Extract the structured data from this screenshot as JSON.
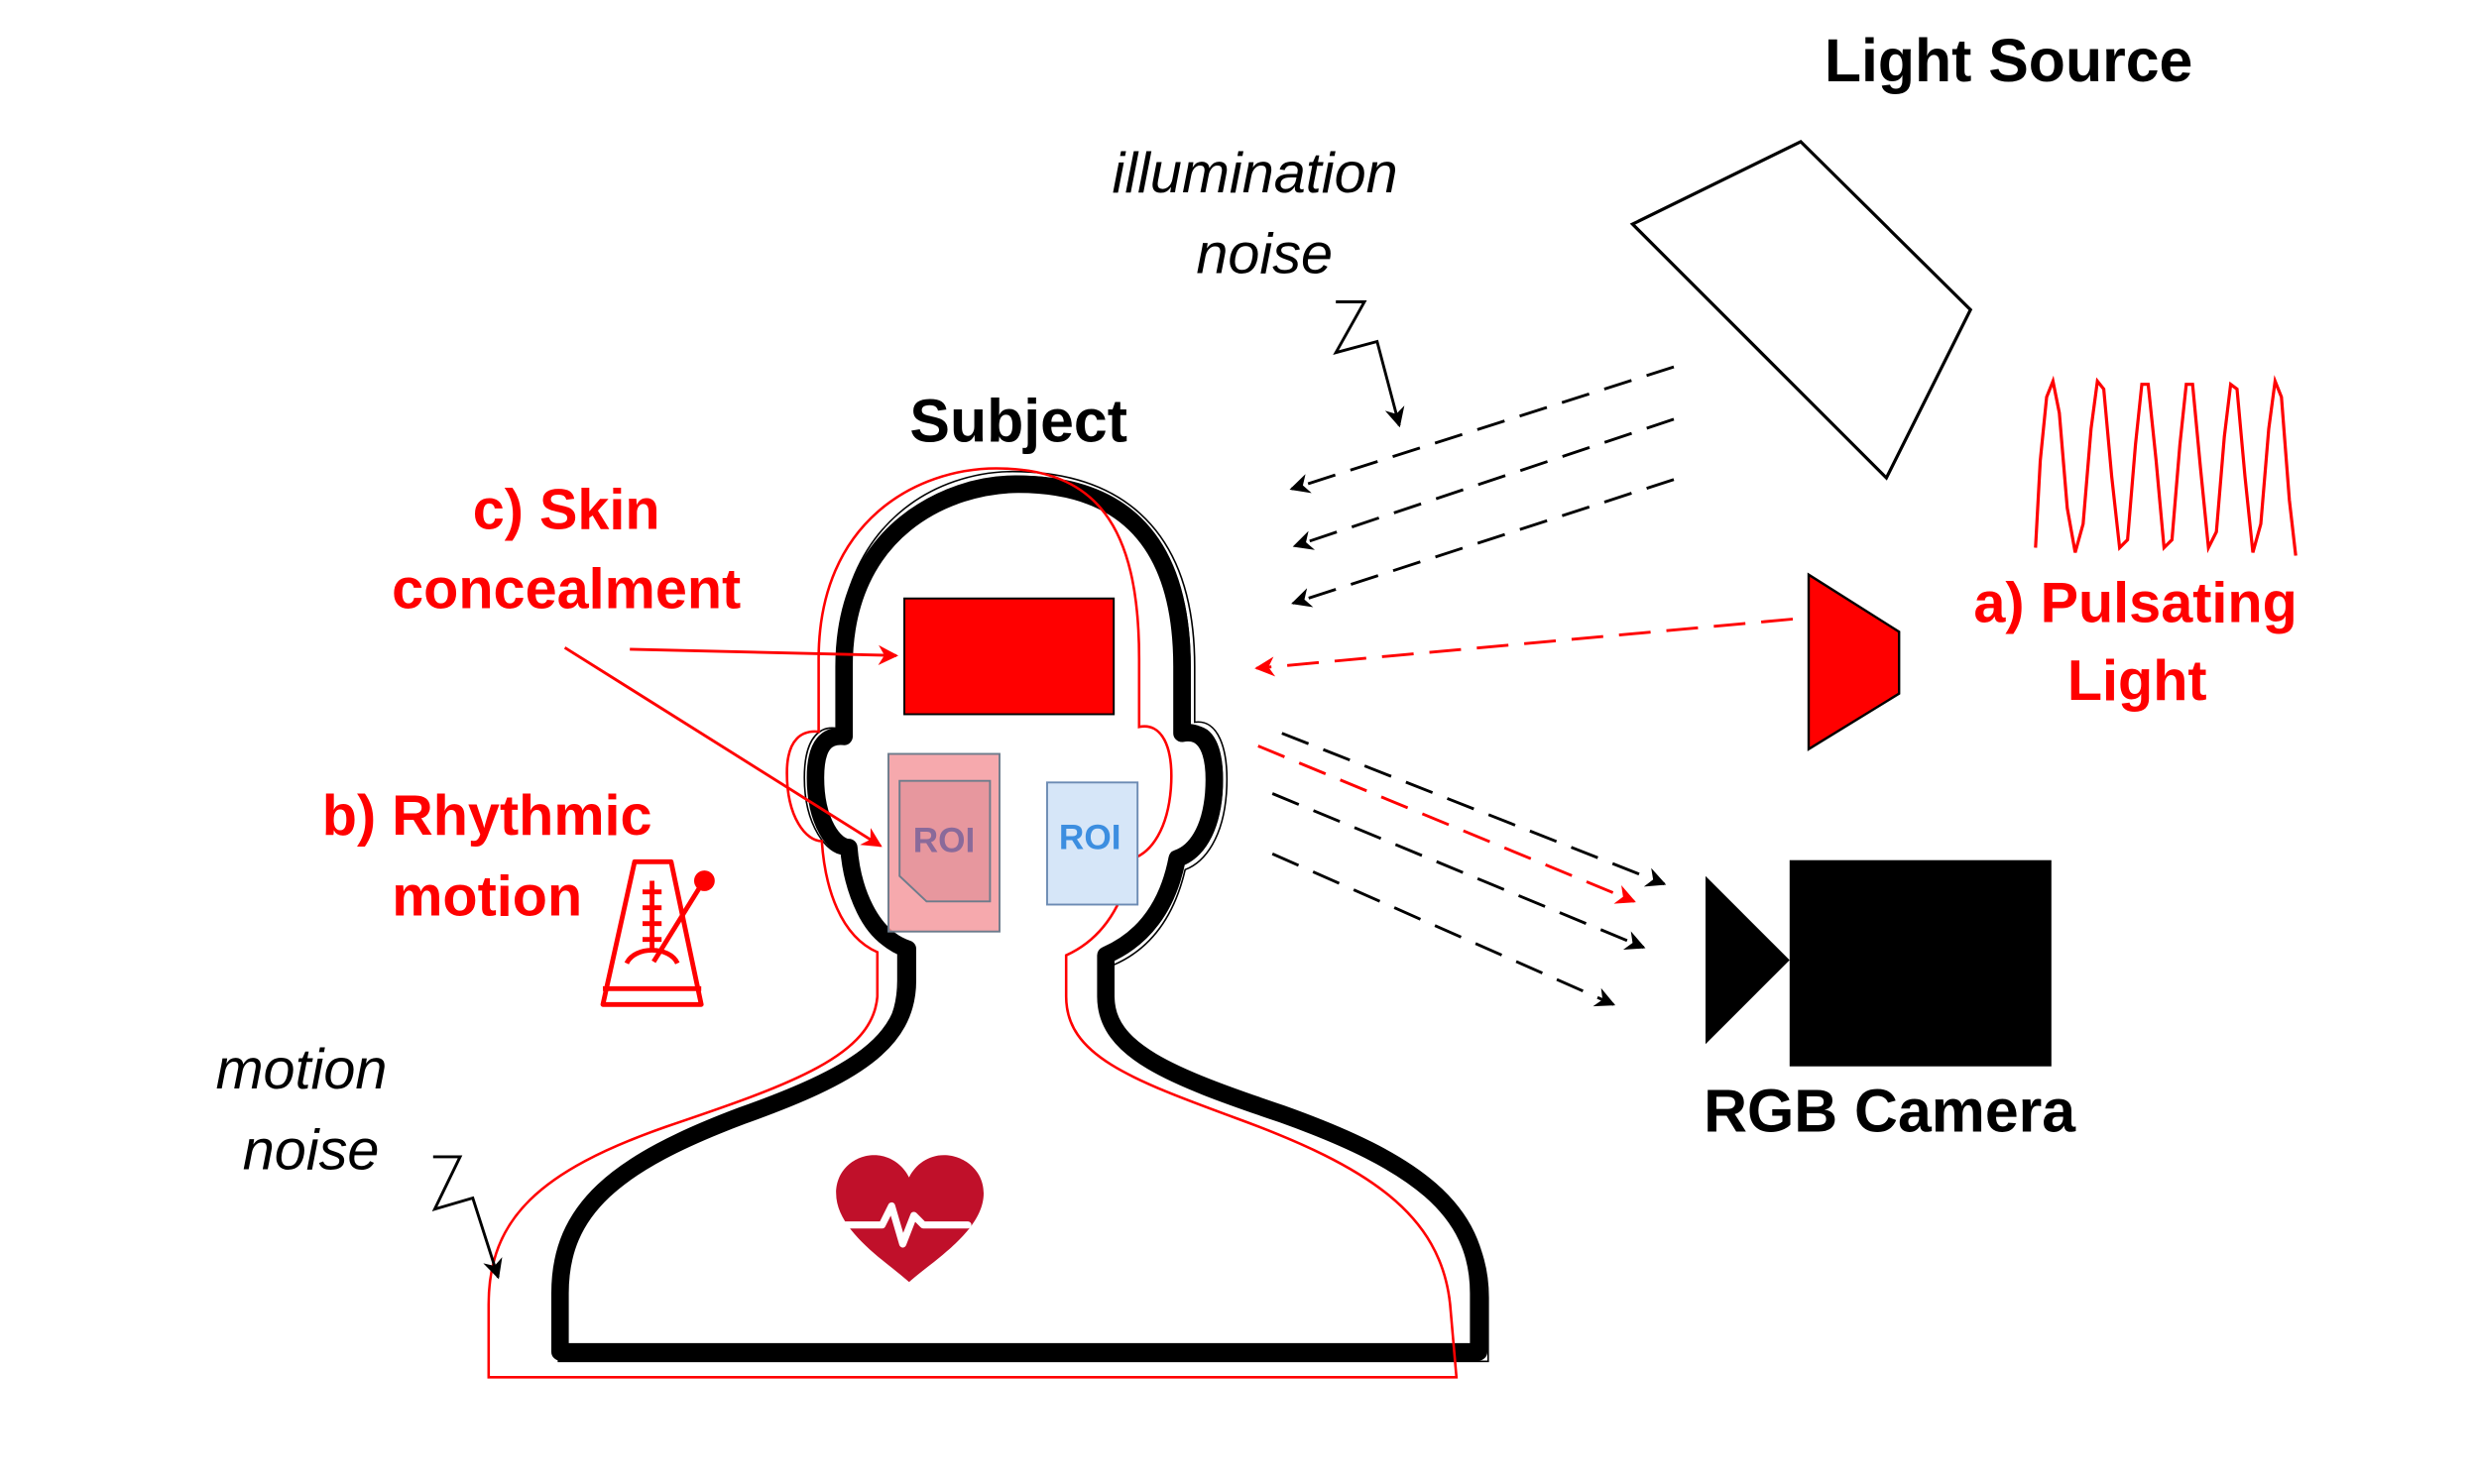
{
  "labels": {
    "light_source": "Light Source",
    "illumination_noise_line1": "illumination",
    "illumination_noise_line2": "noise",
    "subject": "Subject",
    "skin_concealment_line1": "c) Skin",
    "skin_concealment_line2": "concealment",
    "rhythmic_motion_line1": "b) Rhythmic",
    "rhythmic_motion_line2": "motion",
    "motion_noise_line1": "motion",
    "motion_noise_line2": "noise",
    "pulsating_light_line1": "a) Pulsating",
    "pulsating_light_line2": "Light",
    "rgb_camera": "RGB Camera",
    "roi_left": "ROI",
    "roi_right": "ROI"
  },
  "colors": {
    "attack_red": "#ff0000",
    "ink": "#000000",
    "heart_red": "#c0102a",
    "roi_left_fill": "#f59a9f",
    "roi_right_fill": "#d6e6f8",
    "roi_right_text": "#3c8ee0",
    "roi_left_text": "#8a6a9a"
  },
  "icons": [
    "light-source-icon",
    "pulsating-light-icon",
    "camera-icon",
    "metronome-icon",
    "heart-icon",
    "squiggle-arrow-icon"
  ]
}
